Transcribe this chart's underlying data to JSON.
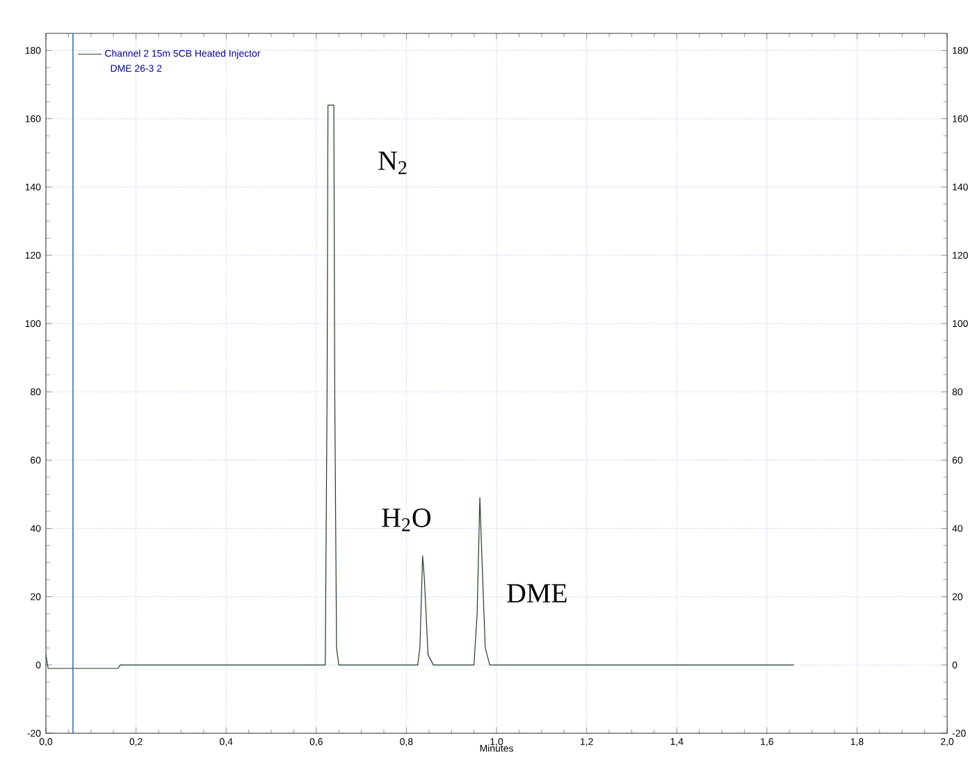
{
  "chart_data": {
    "type": "line",
    "xlabel": "Minutes",
    "xlim": [
      0,
      2
    ],
    "xticks": [
      {
        "value": 0,
        "label": "0,0"
      },
      {
        "value": 0.2,
        "label": "0,2"
      },
      {
        "value": 0.4,
        "label": "0,4"
      },
      {
        "value": 0.6,
        "label": "0,6"
      },
      {
        "value": 0.8,
        "label": "0,8"
      },
      {
        "value": 1.0,
        "label": "1,0"
      },
      {
        "value": 1.2,
        "label": "1,2"
      },
      {
        "value": 1.4,
        "label": "1,4"
      },
      {
        "value": 1.6,
        "label": "1,6"
      },
      {
        "value": 1.8,
        "label": "1,8"
      },
      {
        "value": 2.0,
        "label": "2,0"
      }
    ],
    "ylim": [
      -20,
      185
    ],
    "yticks": [
      -20,
      0,
      20,
      40,
      60,
      80,
      100,
      120,
      140,
      160,
      180
    ],
    "y2lim": [
      -20,
      185
    ],
    "y2ticks": [
      -20,
      0,
      20,
      40,
      60,
      80,
      100,
      120,
      140,
      160,
      180
    ],
    "grid": true,
    "legend": "top left",
    "marker": "none",
    "line_style": "solid",
    "series": [
      {
        "name": "Channel 2 15m 5CB Heated Injector",
        "color": "#1f3d1f",
        "x": [
          0.0,
          0.005,
          0.16,
          0.165,
          0.62,
          0.624,
          0.626,
          0.639,
          0.641,
          0.645,
          0.65,
          0.825,
          0.83,
          0.836,
          0.84,
          0.848,
          0.86,
          0.95,
          0.957,
          0.963,
          0.968,
          0.975,
          0.985,
          1.66
        ],
        "values": [
          3,
          -1,
          -1,
          0,
          0,
          80,
          164,
          164,
          80,
          5,
          0,
          0,
          5,
          32,
          25,
          3,
          0,
          0,
          15,
          49,
          30,
          5,
          0,
          0
        ]
      }
    ],
    "ref_lines": [
      {
        "axis": "x",
        "value": 0.06,
        "color": "#3a6fb0"
      }
    ],
    "annotations": [
      "DME 26-3 2",
      "N$_{2}$",
      "H$_{2}$O",
      "DME"
    ]
  }
}
